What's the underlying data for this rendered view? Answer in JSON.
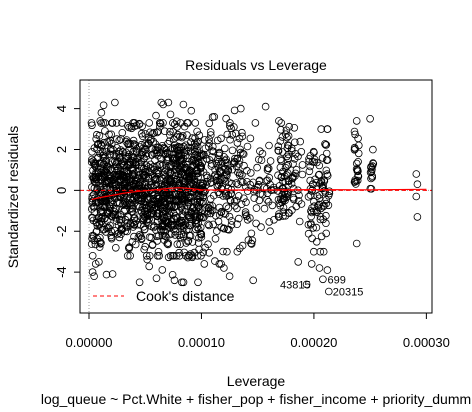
{
  "chart_data": {
    "type": "scatter",
    "title": "Residuals vs Leverage",
    "xlabel": "Leverage",
    "ylabel": "Standardized residuals",
    "caption": "log_queue ~ Pct.White + fisher_pop + fisher_income + priority_dumm",
    "xlim": [
      -8e-06,
      0.000305
    ],
    "ylim": [
      -6.0,
      5.4
    ],
    "x_ticks": [
      0.0,
      0.0001,
      0.0002,
      0.0003
    ],
    "x_tick_labels": [
      "0.00000",
      "0.00010",
      "0.00020",
      "0.00030"
    ],
    "y_ticks": [
      -4,
      -2,
      0,
      2,
      4
    ],
    "y_tick_labels": [
      "-4",
      "-2",
      "0",
      "2",
      "4"
    ],
    "grid": false,
    "legend": {
      "position": "bottom-left",
      "entries": [
        {
          "label": "Cook's distance",
          "color": "#ff0000",
          "style": "dashed"
        }
      ]
    },
    "annotations": [
      {
        "label": "43815",
        "x": 0.0001935,
        "y": -4.6
      },
      {
        "label": "699",
        "x": 0.0002085,
        "y": -4.35
      },
      {
        "label": "20315",
        "x": 0.0002132,
        "y": -4.95
      }
    ],
    "clusters": [
      {
        "x": [
          2.2e-06,
          0.000102
        ],
        "ylo": -3.2,
        "yhi": 3.3,
        "n": 1100
      },
      {
        "x": [
          2.2e-06,
          0.000102
        ],
        "ylo": -4.5,
        "yhi": 4.3,
        "n": 160
      },
      {
        "x": [
          0.000102,
          0.000122
        ],
        "ylo": -3.6,
        "yhi": 3.6,
        "n": 110
      },
      {
        "x": [
          0.000122,
          0.000136
        ],
        "ylo": -3.0,
        "yhi": 4.1,
        "n": 70
      },
      {
        "x": [
          0.000136,
          0.000154
        ],
        "ylo": -2.7,
        "yhi": 3.2,
        "n": 45
      },
      {
        "x": [
          0.000154,
          0.000165
        ],
        "ylo": -2.0,
        "yhi": 2.5,
        "n": 25
      },
      {
        "x": [
          0.000168,
          0.000178
        ],
        "ylo": -2.6,
        "yhi": 3.4,
        "n": 70
      },
      {
        "x": [
          0.00018,
          0.00019
        ],
        "ylo": -1.6,
        "yhi": 3.3,
        "n": 30
      },
      {
        "x": [
          0.000195,
          0.000214
        ],
        "ylo": -3.0,
        "yhi": 3.0,
        "n": 90
      },
      {
        "x": [
          0.000236,
          0.00024
        ],
        "ylo": -1.3,
        "yhi": 3.3,
        "n": 22
      },
      {
        "x": [
          0.00025,
          0.000253
        ],
        "ylo": -0.5,
        "yhi": 2.0,
        "n": 14
      }
    ],
    "points": [
      [
        3.2e-06,
        -4.0
      ],
      [
        4.5e-06,
        -4.2
      ],
      [
        6e-06,
        -3.6
      ],
      [
        8.8e-06,
        -3.5
      ],
      [
        1.1e-05,
        3.8
      ],
      [
        2.3e-05,
        4.3
      ],
      [
        4.5e-05,
        -4.5
      ],
      [
        6e-05,
        -4.3
      ],
      [
        6.6e-05,
        4.2
      ],
      [
        7.6e-05,
        -4.4
      ],
      [
        8.4e-05,
        -4.5
      ],
      [
        9.1e-05,
        3.9
      ],
      [
        0.00012,
        -3.8
      ],
      [
        0.000125,
        -4.2
      ],
      [
        0.000135,
        4.0
      ],
      [
        0.000146,
        -4.4
      ],
      [
        0.000148,
        3.3
      ],
      [
        0.000157,
        4.1
      ],
      [
        0.000171,
        3.3
      ],
      [
        0.000186,
        -3.5
      ],
      [
        0.000198,
        -3.6
      ],
      [
        0.000205,
        -3.8
      ],
      [
        0.000208,
        -4.35
      ],
      [
        0.000212,
        -3.9
      ],
      [
        0.0001935,
        -4.6
      ],
      [
        0.0002132,
        -4.95
      ],
      [
        0.000238,
        3.4
      ],
      [
        0.000238,
        -2.6
      ],
      [
        0.00025,
        3.5
      ],
      [
        0.000291,
        0.8
      ],
      [
        0.000292,
        0.3
      ],
      [
        0.000291,
        -0.3
      ],
      [
        0.000292,
        -1.3
      ]
    ],
    "smooth_line": {
      "color": "#ff0000",
      "x": [
        2.2e-06,
        1e-05,
        2e-05,
        3e-05,
        4e-05,
        5e-05,
        6e-05,
        7e-05,
        8e-05,
        9e-05,
        0.0001,
        0.00012,
        0.00015,
        0.0002,
        0.00025,
        0.0003
      ],
      "y": [
        -0.45,
        -0.35,
        -0.25,
        -0.15,
        -0.07,
        -0.02,
        0.04,
        0.09,
        0.13,
        0.09,
        0.03,
        0.02,
        0.02,
        0.04,
        0.03,
        0.05
      ]
    },
    "cooks_distance_line": {
      "color": "#ff0000",
      "style": "dashed",
      "y": 0.0
    },
    "zero_line": {
      "color": "#999999",
      "style": "dotted",
      "y": 0.0
    },
    "vertical_zero_line": {
      "color": "#999999",
      "style": "dotted",
      "x": 0.0
    }
  }
}
